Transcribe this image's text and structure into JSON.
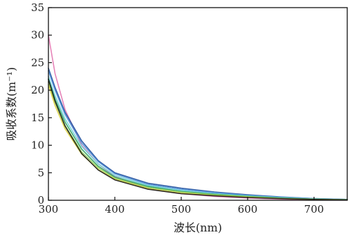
{
  "chart_data": {
    "type": "line",
    "xlabel": "波长(nm)",
    "ylabel": "吸收系数(m⁻¹)",
    "xlim": [
      300,
      750
    ],
    "ylim": [
      0,
      35
    ],
    "xticks": [
      300,
      400,
      500,
      600,
      700
    ],
    "yticks": [
      0,
      5,
      10,
      15,
      20,
      25,
      30,
      35
    ],
    "grid": false,
    "legend": "none",
    "series": [
      {
        "color": "#e377b0",
        "x": [
          300,
          310,
          325,
          350,
          375,
          400,
          450,
          500,
          550,
          600,
          650,
          700,
          750
        ],
        "values": [
          30,
          23,
          16.5,
          10,
          6.6,
          4.3,
          2.1,
          1.2,
          0.7,
          0.4,
          0.2,
          0.1,
          0.05
        ]
      },
      {
        "color": "#1f4e9c",
        "x": [
          300,
          310,
          325,
          350,
          375,
          400,
          450,
          500,
          550,
          600,
          650,
          700,
          750
        ],
        "values": [
          24,
          20.5,
          16,
          10.8,
          7.2,
          5,
          3.1,
          2.2,
          1.5,
          1,
          0.6,
          0.3,
          0.15
        ]
      },
      {
        "color": "#4f8fd6",
        "x": [
          300,
          310,
          325,
          350,
          375,
          400,
          450,
          500,
          550,
          600,
          650,
          700,
          750
        ],
        "values": [
          23.5,
          20,
          15.6,
          10.4,
          7,
          4.8,
          2.9,
          2,
          1.4,
          0.9,
          0.55,
          0.3,
          0.15
        ]
      },
      {
        "color": "#6ad0d8",
        "x": [
          300,
          310,
          325,
          350,
          375,
          400,
          450,
          500,
          550,
          600,
          650,
          700,
          750
        ],
        "values": [
          22.5,
          19,
          14.8,
          9.8,
          6.6,
          4.5,
          2.7,
          1.8,
          1.2,
          0.8,
          0.5,
          0.25,
          0.1
        ]
      },
      {
        "color": "#2a9d5c",
        "x": [
          300,
          310,
          325,
          350,
          375,
          400,
          450,
          500,
          550,
          600,
          650,
          700,
          750
        ],
        "values": [
          22,
          18.4,
          14.2,
          9.3,
          6.2,
          4.2,
          2.5,
          1.6,
          1.1,
          0.7,
          0.4,
          0.2,
          0.1
        ]
      },
      {
        "color": "#8fcf5a",
        "x": [
          300,
          310,
          325,
          350,
          375,
          400,
          450,
          500,
          550,
          600,
          650,
          700,
          750
        ],
        "values": [
          21.5,
          17.8,
          13.6,
          8.8,
          5.9,
          4,
          2.3,
          1.5,
          1,
          0.65,
          0.35,
          0.2,
          0.1
        ]
      },
      {
        "color": "#d8cf3a",
        "x": [
          300,
          310,
          325,
          350,
          375,
          400,
          450,
          500,
          550,
          600,
          650,
          700,
          750
        ],
        "values": [
          21,
          17.2,
          13,
          8.4,
          5.6,
          3.8,
          2.1,
          1.3,
          0.85,
          0.55,
          0.3,
          0.15,
          0.08
        ]
      },
      {
        "color": "#1a1a1a",
        "x": [
          300,
          310,
          325,
          350,
          375,
          400,
          450,
          500,
          550,
          600,
          650,
          700,
          750
        ],
        "values": [
          22,
          18,
          13.5,
          8.5,
          5.5,
          3.7,
          2,
          1.2,
          0.8,
          0.5,
          0.3,
          0.15,
          0.08
        ]
      }
    ]
  }
}
